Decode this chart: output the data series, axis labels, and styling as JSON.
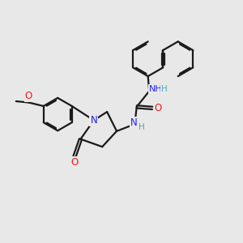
{
  "bg_color": "#e8e8e8",
  "bond_color": "#1a1a1a",
  "N_color": "#2020ee",
  "O_color": "#ee1a1a",
  "H_color": "#4aabab",
  "line_width": 1.6,
  "dbo": 0.055,
  "xlim": [
    0,
    10
  ],
  "ylim": [
    0,
    10
  ],
  "r_hex": 0.68
}
